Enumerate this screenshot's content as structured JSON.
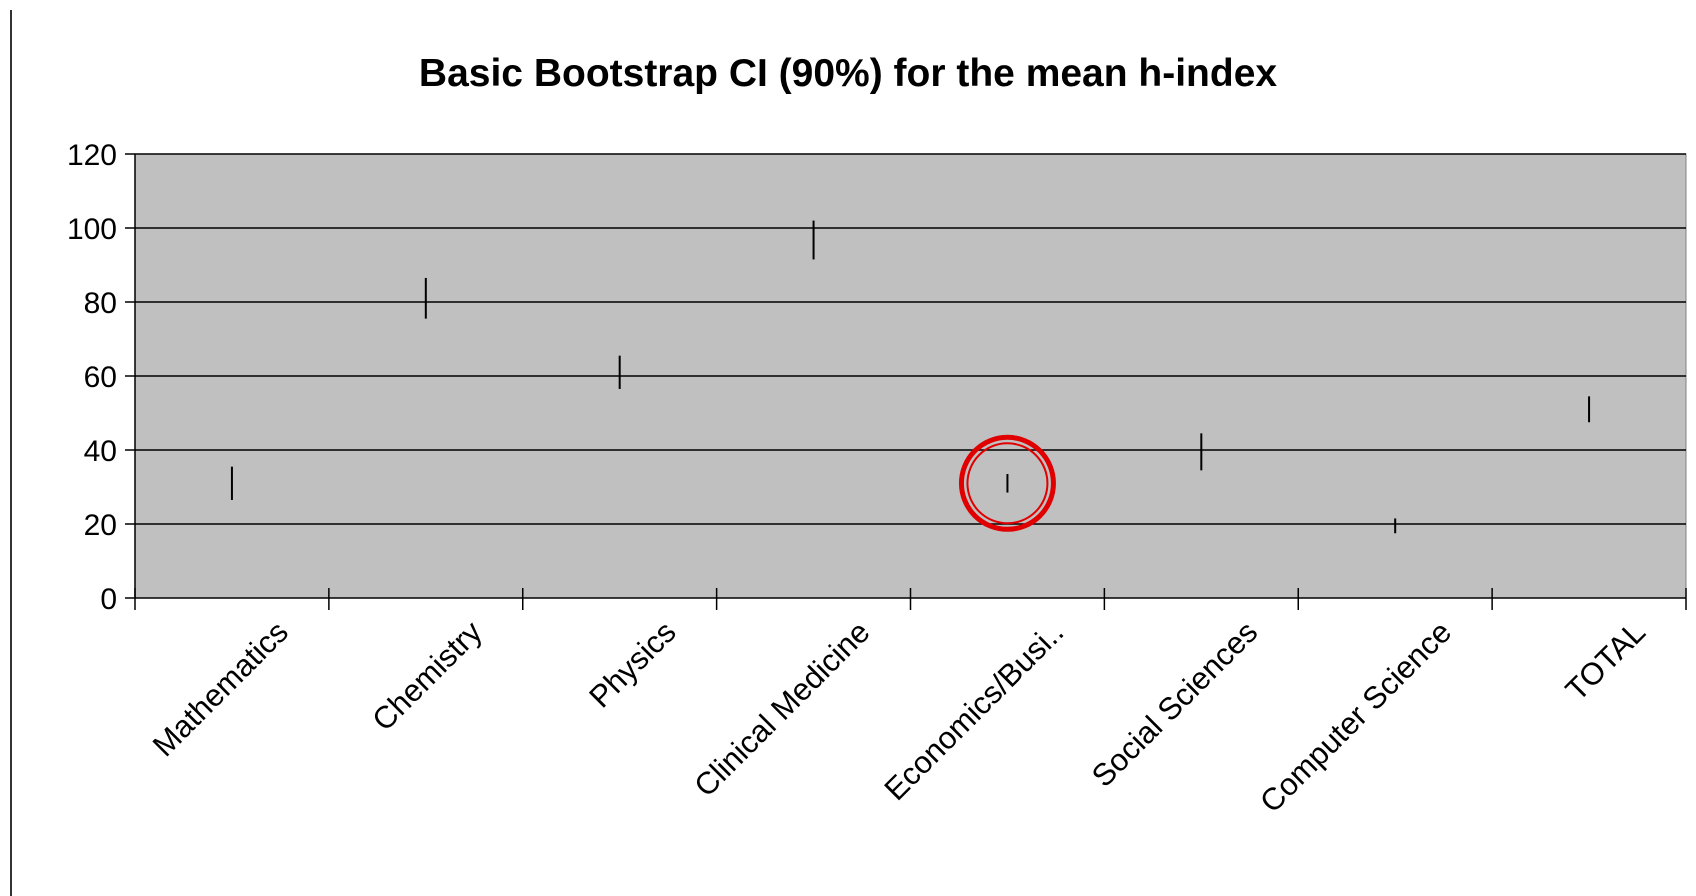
{
  "chart_data": {
    "type": "range",
    "title": "Basic Bootstrap CI (90%) for the mean h-index",
    "xlabel": "",
    "ylabel": "",
    "ylim": [
      0,
      120
    ],
    "yticks": [
      "0",
      "20",
      "40",
      "60",
      "80",
      "100",
      "120"
    ],
    "grid": true,
    "categories": [
      "Mathematics",
      "Chemistry",
      "Physics",
      "Clinical Medicine",
      "Economics/Busi..",
      "Social Sciences",
      "Computer Science",
      "TOTAL"
    ],
    "series": [
      {
        "low": [
          26.5,
          75.5,
          56.5,
          91.5,
          28.5,
          34.5,
          17.5,
          47.5
        ],
        "high": [
          35.5,
          86.5,
          65.5,
          102.0,
          33.5,
          44.5,
          21.5,
          54.5
        ]
      }
    ],
    "highlight": {
      "category": "Economics/Busi..",
      "shape": "circle",
      "color": "#e00000"
    }
  },
  "colors": {
    "plot_background": "#c0c0c0",
    "gridline": "#000000",
    "range_bar": "#000000"
  }
}
